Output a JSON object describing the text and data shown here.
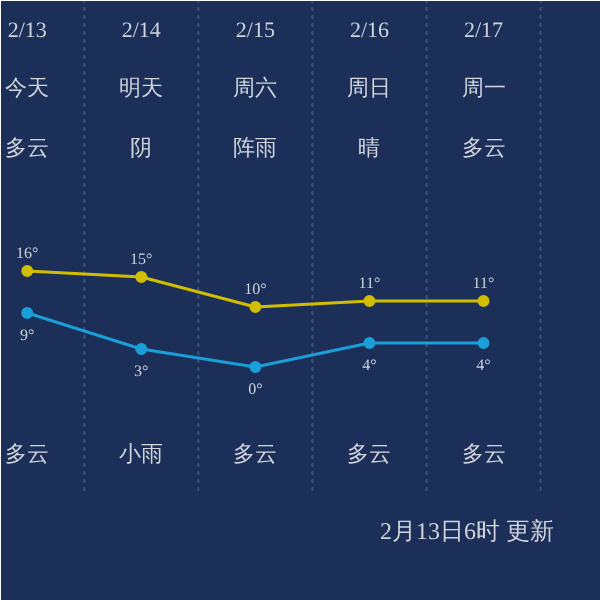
{
  "chart_data": {
    "type": "line",
    "categories": [
      "2/13",
      "2/14",
      "2/15",
      "2/16",
      "2/17"
    ],
    "series": [
      {
        "color": "#d2be00",
        "values": [
          16,
          15,
          10,
          11,
          11
        ],
        "value_labels": [
          "16°",
          "15°",
          "10°",
          "11°",
          "11°"
        ]
      },
      {
        "color": "#1a9fd8",
        "values": [
          9,
          3,
          0,
          4,
          4
        ],
        "value_labels": [
          "9°",
          "3°",
          "0°",
          "4°",
          "4°"
        ]
      }
    ],
    "ylim": [
      -39,
      61
    ],
    "marker": "circle",
    "line_style": "solid",
    "grid": "x",
    "annotations": [
      "今天",
      "明天",
      "周六",
      "周日",
      "周一",
      "多云",
      "阴",
      "阵雨",
      "晴",
      "多云",
      "多云",
      "小雨",
      "多云",
      "多云",
      "多云",
      "2月13日6时 更新"
    ]
  }
}
